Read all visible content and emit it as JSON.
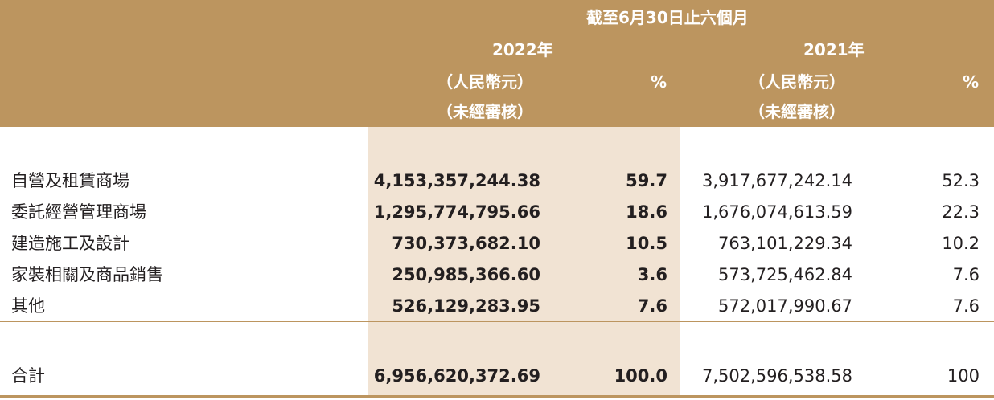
{
  "header": {
    "period": "截至6月30日止六個月",
    "year_2022": "2022年",
    "year_2021": "2021年",
    "currency_2022": "（人民幣元）",
    "currency_2021": "（人民幣元）",
    "audit_2022": "（未經審核）",
    "audit_2021": "（未經審核）",
    "pct_2022": "%",
    "pct_2021": "%"
  },
  "rows": [
    {
      "label": "自營及租賃商場",
      "v2022": "4,153,357,244.38",
      "p2022": "59.7",
      "v2021": "3,917,677,242.14",
      "p2021": "52.3"
    },
    {
      "label": "委託經營管理商場",
      "v2022": "1,295,774,795.66",
      "p2022": "18.6",
      "v2021": "1,676,074,613.59",
      "p2021": "22.3"
    },
    {
      "label": "建造施工及設計",
      "v2022": "730,373,682.10",
      "p2022": "10.5",
      "v2021": "763,101,229.34",
      "p2021": "10.2"
    },
    {
      "label": "家裝相關及商品銷售",
      "v2022": "250,985,366.60",
      "p2022": "3.6",
      "v2021": "573,725,462.84",
      "p2021": "7.6"
    },
    {
      "label": "其他",
      "v2022": "526,129,283.95",
      "p2022": "7.6",
      "v2021": "572,017,990.67",
      "p2021": "7.6"
    }
  ],
  "total": {
    "label": "合計",
    "v2022": "6,956,620,372.69",
    "p2022": "100.0",
    "v2021": "7,502,596,538.58",
    "p2021": "100"
  },
  "colors": {
    "header_bg": "#bc955f",
    "shade": "#f1e3d3"
  }
}
